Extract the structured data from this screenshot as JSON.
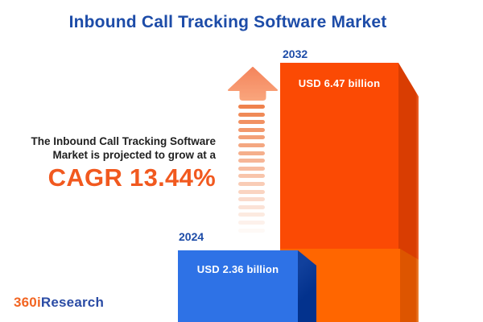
{
  "title": "Inbound Call Tracking Software Market",
  "growth_note": {
    "line1": "The Inbound Call Tracking Software",
    "line2": "Market is projected to grow at a",
    "cagr": "CAGR 13.44%"
  },
  "bars": [
    {
      "year": "2024",
      "value_label": "USD 2.36 billion"
    },
    {
      "year": "2032",
      "value_label": "USD 6.47 billion"
    }
  ],
  "logo": {
    "prefix": "360i",
    "suffix": "Research"
  },
  "decoration": {
    "arrow_dash_count": 17
  },
  "colors": {
    "title_blue": "#1d4ca8",
    "bar_2024_front": "#2e72e6",
    "bar_2024_side": "#03328d",
    "bar_2032_front": "#fb4a04",
    "bar_2032_side": "#d93d02",
    "bar_2032_base_front": "#ff6600",
    "bar_2032_base_side": "#dd5500",
    "cagr_orange": "#f1591f",
    "arrow_salmon": "#f4845c",
    "text_dark": "#212121",
    "logo_orange": "#f26522",
    "logo_blue": "#2b4ca5"
  },
  "chart_data": {
    "type": "bar",
    "title": "Inbound Call Tracking Software Market",
    "categories": [
      "2024",
      "2032"
    ],
    "values": [
      2.36,
      6.47
    ],
    "unit": "USD billion",
    "value_labels": [
      "USD 2.36 billion",
      "USD 6.47 billion"
    ],
    "cagr_percent": 13.44,
    "annotations": [
      "The Inbound Call Tracking Software Market is projected to grow at a CAGR 13.44%"
    ],
    "series_colors": [
      "#2e72e6",
      "#fb4a04"
    ],
    "legend": false,
    "axes": false,
    "orientation": "vertical-3d"
  }
}
